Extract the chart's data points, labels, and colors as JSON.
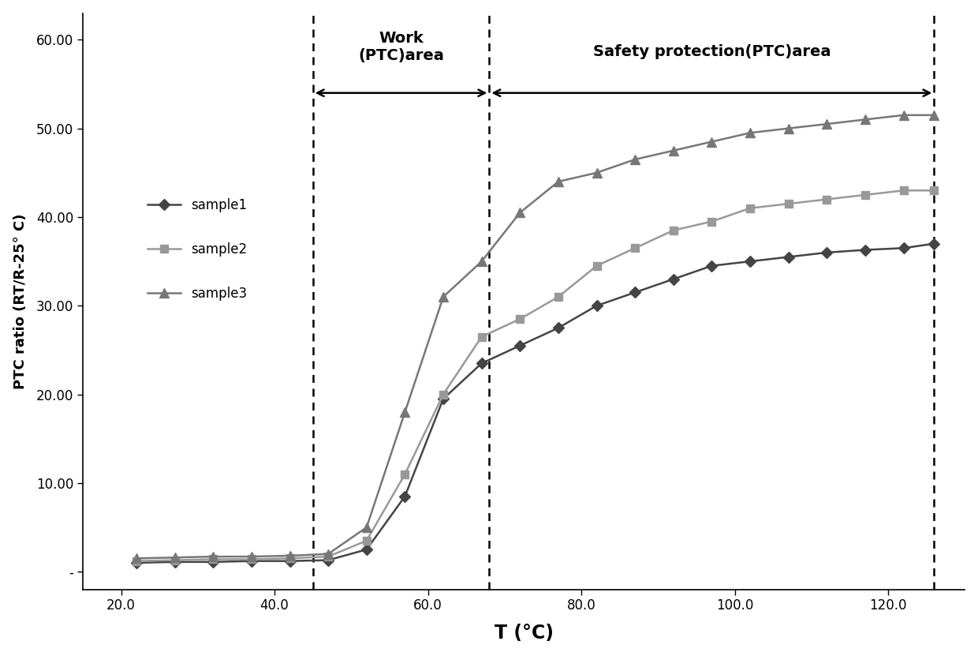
{
  "title": "",
  "xlabel": "T (°C)",
  "ylabel": "PTC ratio (RT/R-25° C)",
  "xlim": [
    15.0,
    130.0
  ],
  "ylim": [
    -2.0,
    63.0
  ],
  "xticks": [
    20.0,
    40.0,
    60.0,
    80.0,
    100.0,
    120.0
  ],
  "yticks": [
    0,
    10.0,
    20.0,
    30.0,
    40.0,
    50.0,
    60.0
  ],
  "ytick_labels": [
    "-",
    "10.00",
    "20.00",
    "30.00",
    "40.00",
    "50.00",
    "60.00"
  ],
  "vline1_x": 45.0,
  "vline2_x": 68.0,
  "vline3_x": 126.0,
  "work_area_label": "Work\n(PTC)area",
  "safety_area_label": "Safety protection(PTC)area",
  "sample1_color": "#444444",
  "sample2_color": "#999999",
  "sample3_color": "#777777",
  "sample1_x": [
    22,
    27,
    32,
    37,
    42,
    47,
    52,
    57,
    62,
    67,
    72,
    77,
    82,
    87,
    92,
    97,
    102,
    107,
    112,
    117,
    122,
    126
  ],
  "sample1_y": [
    1.0,
    1.1,
    1.1,
    1.2,
    1.2,
    1.3,
    2.5,
    8.5,
    19.5,
    23.5,
    25.5,
    27.5,
    30.0,
    31.5,
    33.0,
    34.5,
    35.0,
    35.5,
    36.0,
    36.3,
    36.5,
    37.0
  ],
  "sample2_x": [
    22,
    27,
    32,
    37,
    42,
    47,
    52,
    57,
    62,
    67,
    72,
    77,
    82,
    87,
    92,
    97,
    102,
    107,
    112,
    117,
    122,
    126
  ],
  "sample2_y": [
    1.2,
    1.3,
    1.4,
    1.4,
    1.5,
    1.7,
    3.5,
    11.0,
    20.0,
    26.5,
    28.5,
    31.0,
    34.5,
    36.5,
    38.5,
    39.5,
    41.0,
    41.5,
    42.0,
    42.5,
    43.0,
    43.0
  ],
  "sample3_x": [
    22,
    27,
    32,
    37,
    42,
    47,
    52,
    57,
    62,
    67,
    72,
    77,
    82,
    87,
    92,
    97,
    102,
    107,
    112,
    117,
    122,
    126
  ],
  "sample3_y": [
    1.5,
    1.6,
    1.7,
    1.7,
    1.8,
    2.0,
    5.0,
    18.0,
    31.0,
    35.0,
    40.5,
    44.0,
    45.0,
    46.5,
    47.5,
    48.5,
    49.5,
    50.0,
    50.5,
    51.0,
    51.5,
    51.5
  ],
  "background_color": "#ffffff",
  "label_fontsize": 14,
  "tick_fontsize": 12,
  "legend_fontsize": 12
}
